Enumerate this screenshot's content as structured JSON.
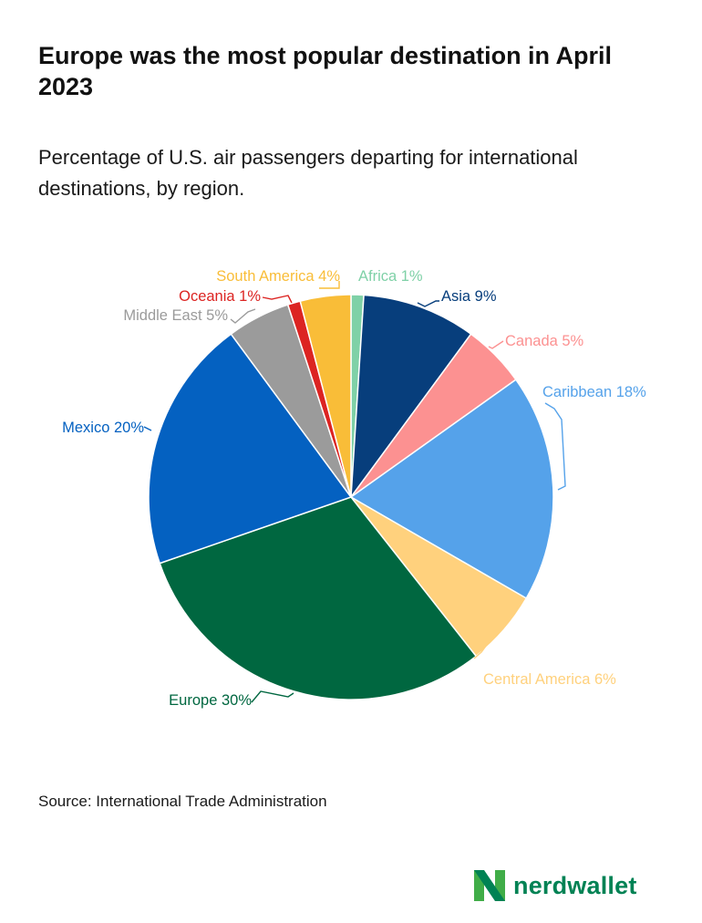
{
  "title": "Europe was the most popular destination in April 2023",
  "subtitle": "Percentage of U.S. air passengers departing for international destinations, by region.",
  "source": "Source: International Trade Administration",
  "brand": {
    "name": "nerdwallet",
    "color": "#008254"
  },
  "chart_data": {
    "type": "pie",
    "start": "12 o'clock",
    "direction": "clockwise",
    "slices": [
      {
        "name": "Africa",
        "value": 1,
        "label": "Africa 1%",
        "color": "#7fd1a7"
      },
      {
        "name": "Asia",
        "value": 9,
        "label": "Asia 9%",
        "color": "#073e7c"
      },
      {
        "name": "Canada",
        "value": 5,
        "label": "Canada 5%",
        "color": "#fc9191"
      },
      {
        "name": "Caribbean",
        "value": 18,
        "label": "Caribbean 18%",
        "color": "#55a2ea"
      },
      {
        "name": "Central America",
        "value": 6,
        "label": "Central America 6%",
        "color": "#ffd17d"
      },
      {
        "name": "Europe",
        "value": 30,
        "label": "Europe 30%",
        "color": "#006740"
      },
      {
        "name": "Mexico",
        "value": 20,
        "label": "Mexico 20%",
        "color": "#0461c1"
      },
      {
        "name": "Middle East",
        "value": 5,
        "label": "Middle East 5%",
        "color": "#9b9b9b"
      },
      {
        "name": "Oceania",
        "value": 1,
        "label": "Oceania 1%",
        "color": "#dc2422"
      },
      {
        "name": "South America",
        "value": 4,
        "label": "South America 4%",
        "color": "#f9bd38"
      }
    ]
  }
}
